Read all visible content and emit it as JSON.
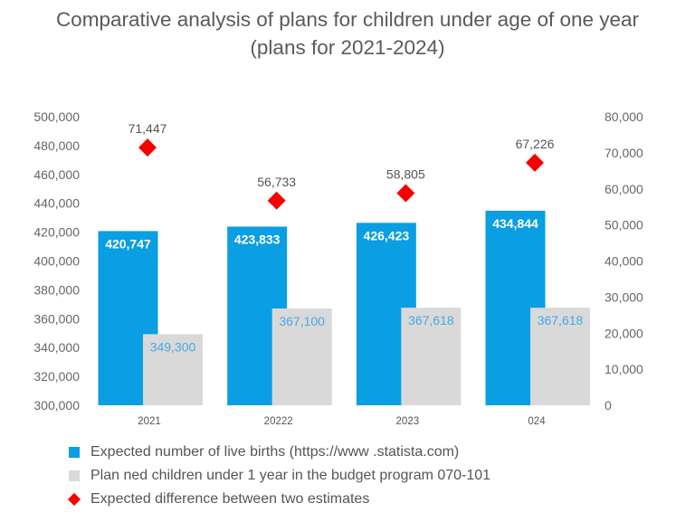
{
  "title": {
    "line1": "Comparative analysis of plans for children under age of one year",
    "line2": "(plans for 2021-2024)"
  },
  "chart_data": {
    "type": "bar",
    "categories": [
      "2021",
      "20222",
      "2023",
      "024"
    ],
    "series": [
      {
        "name": "Expected number of live births (https://www .statista.com)",
        "axis": "left",
        "values": [
          420747,
          423833,
          426423,
          434844
        ],
        "labels": [
          "420,747",
          "423,833",
          "426,423",
          "434,844"
        ],
        "color": "#0a9ee3"
      },
      {
        "name": "Plan ned children under 1 year in the budget program 070-101",
        "axis": "left",
        "values": [
          349300,
          367100,
          367618,
          367618
        ],
        "labels": [
          "349,300",
          "367,100",
          "367,618",
          "367,618"
        ],
        "color": "#d9d9d9",
        "label_color": "#4aa6e6"
      },
      {
        "name": "Expected difference between two estimates",
        "axis": "right",
        "marker": "diamond",
        "values": [
          71447,
          56733,
          58805,
          67226
        ],
        "labels": [
          "71,447",
          "56,733",
          "58,805",
          "67,226"
        ],
        "color": "#f70000"
      }
    ],
    "y_left": {
      "lim": [
        300000,
        500000
      ],
      "ticks": [
        300000,
        320000,
        340000,
        360000,
        380000,
        400000,
        420000,
        440000,
        460000,
        480000,
        500000
      ],
      "tick_labels": [
        "300,000",
        "320,000",
        "340,000",
        "360,000",
        "380,000",
        "400,000",
        "420,000",
        "440,000",
        "460,000",
        "480,000",
        "500,000"
      ]
    },
    "y_right": {
      "lim": [
        0,
        80000
      ],
      "ticks": [
        0,
        10000,
        20000,
        30000,
        40000,
        50000,
        60000,
        70000,
        80000
      ],
      "tick_labels": [
        "0",
        "10,000",
        "20,000",
        "30,000",
        "40,000",
        "50,000",
        "60,000",
        "70,000",
        "80,000"
      ]
    },
    "grid": false,
    "legend_position": "bottom"
  }
}
